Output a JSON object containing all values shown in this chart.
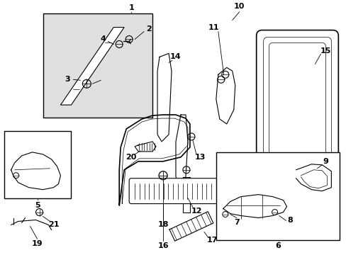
{
  "bg_color": "#ffffff",
  "line_color": "#000000",
  "fill_box": "#e0e0e0",
  "label_fs": 8,
  "lw_main": 1.2,
  "lw_thin": 0.8,
  "lw_hair": 0.5
}
